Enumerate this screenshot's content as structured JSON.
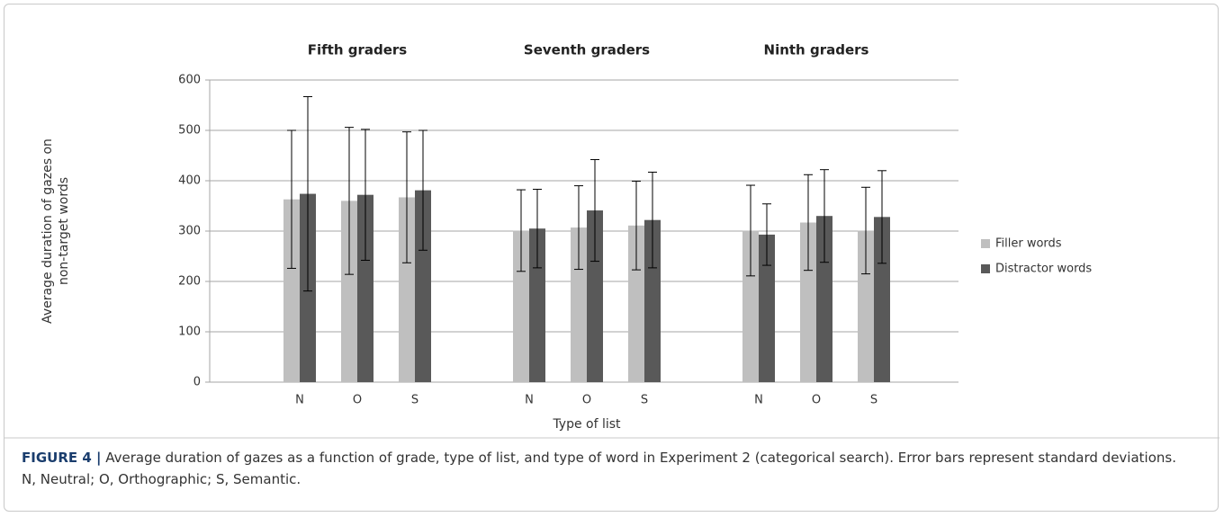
{
  "chart_data": {
    "type": "bar",
    "groups": [
      "Fifth graders",
      "Seventh graders",
      "Ninth graders"
    ],
    "categories": [
      "N",
      "O",
      "S",
      "N",
      "O",
      "S",
      "N",
      "O",
      "S"
    ],
    "series": [
      {
        "name": "Filler words",
        "color": "#bfbfbf",
        "values": [
          363,
          360,
          367,
          301,
          307,
          311,
          301,
          317,
          301
        ],
        "errors": [
          137,
          146,
          130,
          81,
          83,
          88,
          90,
          95,
          86
        ]
      },
      {
        "name": "Distractor words",
        "color": "#595959",
        "values": [
          374,
          372,
          381,
          305,
          341,
          322,
          293,
          330,
          328
        ],
        "errors": [
          193,
          130,
          119,
          78,
          101,
          95,
          61,
          92,
          92
        ]
      }
    ],
    "ylabel": "Average duration of gazes on non-target words",
    "xlabel": "Type of list",
    "ylim": [
      0,
      600
    ],
    "yticks": [
      0,
      100,
      200,
      300,
      400,
      500,
      600
    ],
    "grid": true,
    "legend": "right"
  },
  "caption": {
    "label": "FIGURE 4 |",
    "text": "Average duration of gazes as a function of grade, type of list, and type of word in Experiment 2 (categorical search). Error bars represent standard deviations. N, Neutral; O, Orthographic; S, Semantic."
  }
}
